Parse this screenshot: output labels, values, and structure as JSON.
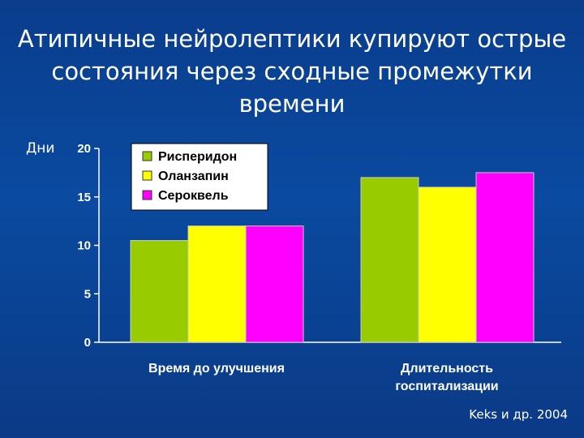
{
  "slide": {
    "title_line1": "Атипичные нейролептики купируют острые",
    "title_line2": "состояния через сходные промежутки времени",
    "source": "Keks и др. 2004"
  },
  "colors": {
    "risperidone": "#99cc00",
    "olanzapine": "#ffff00",
    "seroquel": "#ff00ff"
  },
  "chart_data": {
    "type": "bar",
    "title": "Атипичные нейролептики купируют острые состояния через сходные промежутки времени",
    "ylabel": "Дни",
    "xlabel": "",
    "ylim": [
      0,
      20
    ],
    "yticks": [
      0,
      5,
      10,
      15,
      20
    ],
    "grid": false,
    "legend_position": "top-left",
    "categories": [
      [
        "Время до улучшения"
      ],
      [
        "Длительность",
        "госпитализации"
      ]
    ],
    "series": [
      {
        "name": "Рисперидон",
        "color": "#99cc00",
        "values": [
          10.5,
          17
        ]
      },
      {
        "name": "Оланзапин",
        "color": "#ffff00",
        "values": [
          12,
          16
        ]
      },
      {
        "name": "Сероквель",
        "color": "#ff00ff",
        "values": [
          12,
          17.5
        ]
      }
    ]
  }
}
